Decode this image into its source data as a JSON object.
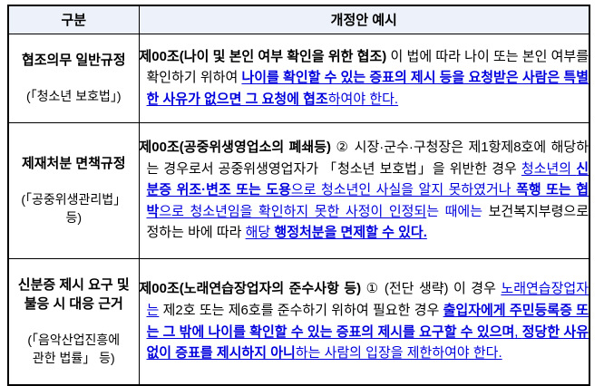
{
  "colors": {
    "accent_blue": "#0000DD",
    "header_bg": "#EDF1F9",
    "border": "#000000"
  },
  "header": {
    "col1": "구분",
    "col2": "개정안 예시"
  },
  "rows": [
    {
      "category_title": "협조의무 일반규정",
      "category_law": "(「청소년 보호법」)",
      "runs": [
        {
          "s": "bb",
          "t": "제00조(나이 및 본인 여부 확인을 위한 협조)"
        },
        {
          "s": "rb",
          "t": " 이 법에 따라 나이 또는 본인 여부를 확인하기 위하여 "
        },
        {
          "s": "bu",
          "t": "나이를 확인할 수 있는 증표의 제시 등을 요청받은 사람은 특별한 사유가 없으면 그 요청에 협조"
        },
        {
          "s": "ru",
          "t": "하여야 한다."
        }
      ]
    },
    {
      "category_title": "제재처분 면책규정",
      "category_law": "(「공중위생관리법」\n등)",
      "runs": [
        {
          "s": "bb",
          "t": "제00조(공중위생영업소의 폐쇄등)"
        },
        {
          "s": "rb",
          "t": " ②  시장·군수·구청장은 제1항제8호에 해당하는 경우로서 공중위생영업자가 「청소년 보호법」을 위반한 경우 "
        },
        {
          "s": "ru",
          "t": "청소년의 "
        },
        {
          "s": "bu",
          "t": "신분증 위조·변조 또는 도용"
        },
        {
          "s": "ru",
          "t": "으로 청소년인 사실을 알지 못하였거나 "
        },
        {
          "s": "bu",
          "t": "폭행 또는 협박"
        },
        {
          "s": "ru",
          "t": "으로 청소년임을 확인하지 못한 사정이 인정되"
        },
        {
          "s": "rn",
          "t": "는 때에는 "
        },
        {
          "s": "rb",
          "t": "보건복지부령으로 정하는 바에 따라 "
        },
        {
          "s": "ru",
          "t": "해당 "
        },
        {
          "s": "bu",
          "t": "행정처분을 면제할 수 있다."
        }
      ]
    },
    {
      "category_title": "신분증 제시 요구 및\n불응 시 대응 근거",
      "category_law": "(「음악산업진흥에\n관한 법률」 등)",
      "runs": [
        {
          "s": "bb",
          "t": "제00조(노래연습장업자의 준수사항 등)"
        },
        {
          "s": "rb",
          "t": " ① (전단 생략) 이 경우 "
        },
        {
          "s": "ru",
          "t": "노래연습장업자는"
        },
        {
          "s": "rb",
          "t": " 제2호 또는 제6호를 준수하기 위하여 필요한 경우 "
        },
        {
          "s": "bu",
          "t": "출입자에게 주민등록증 또는 그 밖에 나이를 확인할 수 있는 증표의 제시를 요구할 수 있으며"
        },
        {
          "s": "ru",
          "t": ", "
        },
        {
          "s": "bu",
          "t": "정당한 사유 없이 증표를 제시하지 아니"
        },
        {
          "s": "ru",
          "t": "하는 사람의 입장을 제한하여야 한다."
        }
      ]
    }
  ]
}
